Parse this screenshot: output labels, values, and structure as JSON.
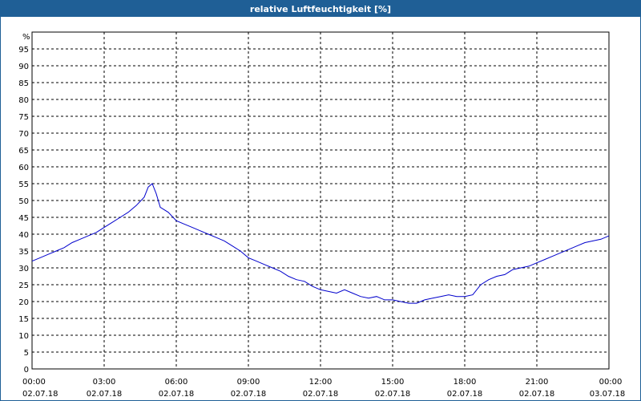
{
  "title": "relative Luftfeuchtigkeit [%]",
  "colors": {
    "titlebar": "#1f5f96",
    "title_text": "#ffffff",
    "series": "#0000cc",
    "grid": "#000000",
    "background": "#ffffff"
  },
  "chart_data": {
    "type": "line",
    "title": "relative Luftfeuchtigkeit [%]",
    "ylabel": "%",
    "xlabel": "",
    "ylim": [
      0,
      100
    ],
    "y_ticks": [
      0,
      5,
      10,
      15,
      20,
      25,
      30,
      35,
      40,
      45,
      50,
      55,
      60,
      65,
      70,
      75,
      80,
      85,
      90,
      95
    ],
    "xlim": [
      "02.07.18 00:00",
      "03.07.18 00:00"
    ],
    "x_tick_times": [
      "00:00",
      "03:00",
      "06:00",
      "09:00",
      "12:00",
      "15:00",
      "18:00",
      "21:00",
      "00:00"
    ],
    "x_tick_dates": [
      "02.07.18",
      "02.07.18",
      "02.07.18",
      "02.07.18",
      "02.07.18",
      "02.07.18",
      "02.07.18",
      "02.07.18",
      "03.07.18"
    ],
    "grid": true,
    "series": [
      {
        "x": [
          "00:00",
          "00:20",
          "00:40",
          "01:00",
          "01:20",
          "01:40",
          "02:00",
          "02:20",
          "02:40",
          "03:00",
          "03:20",
          "03:40",
          "04:00",
          "04:20",
          "04:40",
          "04:50",
          "05:00",
          "05:10",
          "05:20",
          "05:40",
          "06:00",
          "06:20",
          "06:40",
          "07:00",
          "07:20",
          "07:40",
          "08:00",
          "08:20",
          "08:40",
          "09:00",
          "09:20",
          "09:40",
          "10:00",
          "10:20",
          "10:40",
          "11:00",
          "11:20",
          "11:40",
          "12:00",
          "12:20",
          "12:40",
          "13:00",
          "13:20",
          "13:40",
          "14:00",
          "14:20",
          "14:40",
          "15:00",
          "15:20",
          "15:40",
          "16:00",
          "16:20",
          "16:40",
          "17:00",
          "17:20",
          "17:40",
          "18:00",
          "18:20",
          "18:40",
          "19:00",
          "19:20",
          "19:40",
          "20:00",
          "20:20",
          "20:40",
          "21:00",
          "21:20",
          "21:40",
          "22:00",
          "22:20",
          "22:40",
          "23:00",
          "23:20",
          "23:40",
          "24:00"
        ],
        "values": [
          32,
          33,
          34,
          35,
          36,
          37.5,
          38.5,
          39.5,
          40.5,
          42,
          43.5,
          45,
          46.5,
          48.5,
          51,
          54,
          55,
          52,
          48,
          46.5,
          44,
          43,
          42,
          41,
          40,
          39,
          38,
          36.5,
          35,
          33,
          32,
          31,
          30,
          29,
          27.5,
          26.5,
          26,
          24.5,
          23.5,
          23,
          22.5,
          23.5,
          22.5,
          21.5,
          21,
          21.5,
          20.5,
          20.5,
          20,
          19.5,
          19.5,
          20.5,
          21,
          21.5,
          22,
          21.5,
          21.5,
          22,
          25,
          26.5,
          27.5,
          28,
          29.5,
          30,
          30.5,
          31.5,
          32.5,
          33.5,
          34.5,
          35.5,
          36.5,
          37.5,
          38,
          38.5,
          39.5
        ]
      }
    ]
  }
}
